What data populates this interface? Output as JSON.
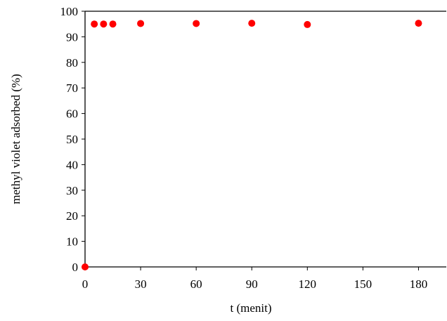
{
  "chart_data": {
    "type": "scatter",
    "xlabel": "t (menit)",
    "ylabel": "methyl violet adsorbed (%)",
    "xlim": [
      0,
      195
    ],
    "ylim": [
      0,
      100
    ],
    "x_ticks": [
      0,
      30,
      60,
      90,
      120,
      150,
      180
    ],
    "y_ticks": [
      0,
      10,
      20,
      30,
      40,
      50,
      60,
      70,
      80,
      90,
      100
    ],
    "grid": false,
    "marker_color": "#ff0000",
    "series": [
      {
        "points": [
          {
            "x": 0,
            "y": 0
          },
          {
            "x": 5,
            "y": 95.0
          },
          {
            "x": 10,
            "y": 95.0
          },
          {
            "x": 15,
            "y": 95.0
          },
          {
            "x": 30,
            "y": 95.2
          },
          {
            "x": 60,
            "y": 95.2
          },
          {
            "x": 90,
            "y": 95.3
          },
          {
            "x": 120,
            "y": 94.8
          },
          {
            "x": 180,
            "y": 95.3
          }
        ]
      }
    ]
  }
}
